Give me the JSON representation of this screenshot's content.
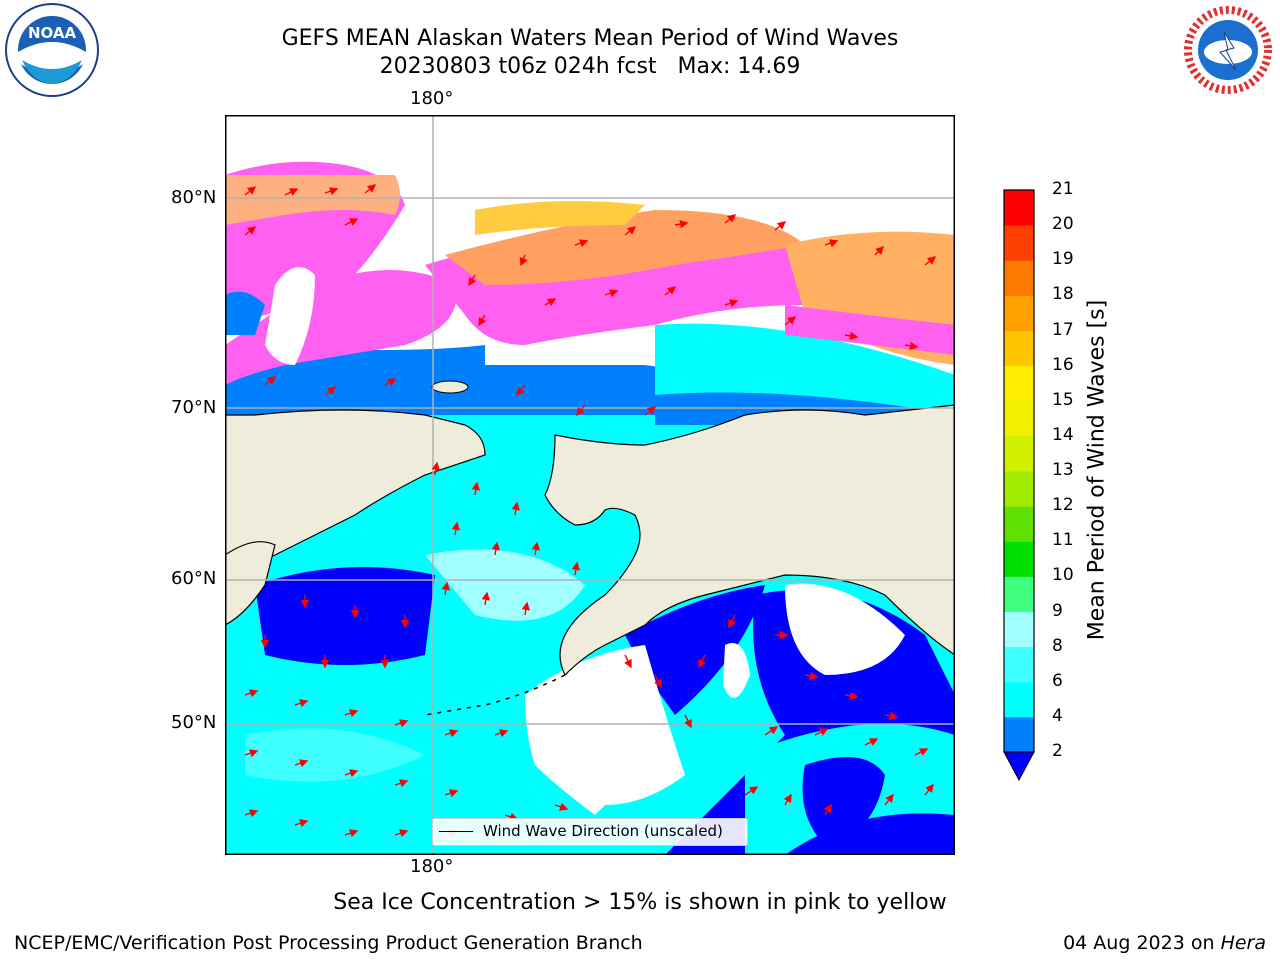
{
  "title": {
    "line1": "GEFS MEAN Alaskan Waters Mean Period of Wind Waves",
    "line2": "20230803 t06z 024h fcst   Max: 14.69"
  },
  "map": {
    "lon_top_label": "180°",
    "lon_bottom_label": "180°",
    "lat_labels": [
      "80°N",
      "70°N",
      "60°N",
      "50°N"
    ],
    "legend_text": "Wind Wave Direction (unscaled)",
    "colors": {
      "land": "#efecdb",
      "coast": "#000000",
      "grid": "#b0b0b0",
      "arrow": "#ff0000",
      "no_data": "#ffffff"
    }
  },
  "colorbar": {
    "label": "Mean Period of Wind Waves [s]",
    "ticks": [
      "2",
      "4",
      "6",
      "8",
      "9",
      "10",
      "11",
      "12",
      "13",
      "14",
      "15",
      "16",
      "17",
      "18",
      "19",
      "20",
      "21"
    ],
    "colors": [
      "#0000ff",
      "#0080ff",
      "#00ffff",
      "#40ffff",
      "#a0ffff",
      "#40ff80",
      "#00e000",
      "#60e000",
      "#a0ea00",
      "#d0f000",
      "#f0f000",
      "#ffee00",
      "#ffc400",
      "#ffa000",
      "#ff7800",
      "#ff4000",
      "#ff0000"
    ]
  },
  "caption": "Sea Ice Concentration > 15% is shown in pink to yellow",
  "footer": {
    "left": "NCEP/EMC/Verification Post Processing Product Generation Branch",
    "right_date": "04 Aug 2023 on ",
    "right_machine": "Hera"
  },
  "logos": {
    "noaa": "NOAA",
    "nws_text": "NATIONAL WEATHER SERVICE"
  }
}
